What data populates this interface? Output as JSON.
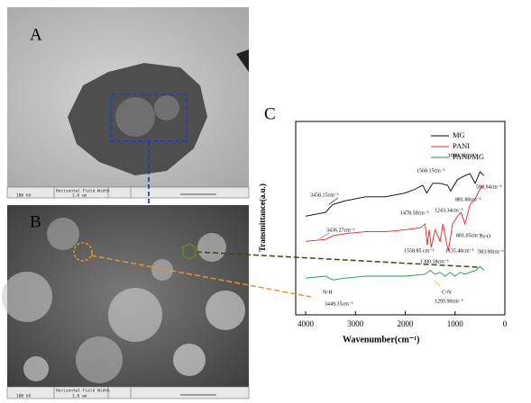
{
  "panels": {
    "a": {
      "label": "A",
      "info": [
        "100 kV",
        "Horizontal Field Width",
        "1.6 um"
      ]
    },
    "b": {
      "label": "B",
      "info": [
        "100 kV",
        "Horizontal Field Width",
        "1.8 um"
      ]
    }
  },
  "chart_data": {
    "type": "line",
    "label": "C",
    "xlabel": "Wavenumber(cm⁻¹)",
    "ylabel": "Transmittance(a.u.)",
    "xlim": [
      4200,
      0
    ],
    "xticks": [
      4000,
      3000,
      2000,
      1000,
      0
    ],
    "ylim": [
      0,
      100
    ],
    "legend": "upper right",
    "series": [
      {
        "name": "MG",
        "color": "#000000",
        "x": [
          4000,
          3600,
          3458,
          3200,
          2800,
          2400,
          2000,
          1800,
          1650,
          1568,
          1450,
          1300,
          1150,
          1088,
          950,
          800,
          700,
          596,
          500,
          420
        ],
        "values": [
          51,
          53,
          57,
          59,
          61,
          61,
          63,
          65,
          67,
          63,
          68,
          68,
          67,
          64,
          70,
          72,
          73,
          68,
          74,
          72
        ]
      },
      {
        "name": "PANI",
        "color": "#e8262a",
        "x": [
          4000,
          3600,
          3436,
          3200,
          2800,
          2400,
          2000,
          1700,
          1600,
          1558,
          1520,
          1478,
          1400,
          1300,
          1243,
          1200,
          1135,
          1050,
          950,
          881,
          801,
          700,
          596,
          500,
          420
        ],
        "values": [
          38,
          39,
          41,
          42,
          43,
          43,
          44,
          45,
          47,
          36,
          44,
          35,
          44,
          38,
          47,
          41,
          33,
          47,
          51,
          53,
          47,
          57,
          60,
          65,
          67
        ]
      },
      {
        "name": "PANI/MG",
        "color": "#1a9a5a",
        "x": [
          4000,
          3600,
          3449,
          3200,
          2800,
          2400,
          2000,
          1600,
          1500,
          1400,
          1300,
          1200,
          1100,
          1000,
          900,
          800,
          700,
          583,
          500,
          420
        ],
        "values": [
          19,
          20,
          18,
          19,
          20,
          20,
          20,
          21,
          23,
          21,
          22,
          20,
          22,
          20,
          22,
          21,
          22,
          23,
          25,
          23
        ]
      }
    ],
    "annotations": [
      "3458.15cm⁻¹",
      "1568.15cm⁻¹",
      "1088.13cm⁻¹",
      "596.94cm⁻¹",
      "881.80cm⁻¹",
      "1243.34cm⁻¹",
      "1478.50cm⁻¹",
      "3436.27cm⁻¹",
      "801.05cm⁻¹",
      "Fe-O",
      "1558.85 cm⁻¹",
      "1135.40cm⁻¹",
      "1300.18cm⁻¹",
      "583.90cm⁻¹",
      "C-N",
      "1295.90cm⁻¹",
      "N-H",
      "3449.35cm⁻¹"
    ]
  }
}
